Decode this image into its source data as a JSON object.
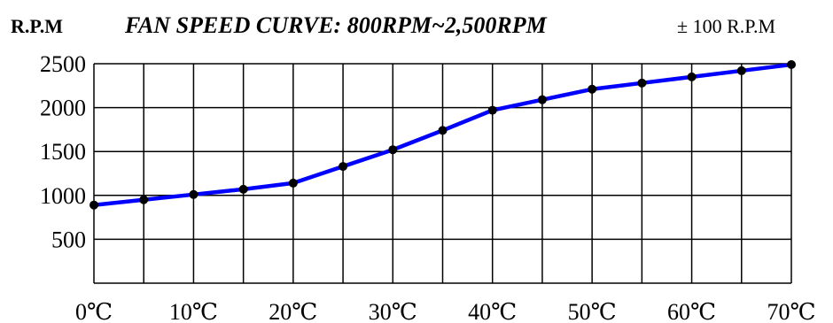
{
  "chart_data": {
    "type": "line",
    "title": "FAN SPEED CURVE: 800RPM~2,500RPM",
    "ylabel": "R.P.M",
    "tolerance_note": "± 100 R.P.M",
    "x": [
      0,
      5,
      10,
      15,
      20,
      25,
      30,
      35,
      40,
      45,
      50,
      55,
      60,
      65,
      70
    ],
    "x_ticks": [
      0,
      10,
      20,
      30,
      40,
      50,
      60,
      70
    ],
    "x_tick_labels": [
      "0℃",
      "10℃",
      "20℃",
      "30℃",
      "40℃",
      "50℃",
      "60℃",
      "70℃"
    ],
    "y_ticks": [
      500,
      1000,
      1500,
      2000,
      2500
    ],
    "y_tick_labels": [
      "500",
      "1000",
      "1500",
      "2000",
      "2500"
    ],
    "xlim": [
      0,
      70
    ],
    "ylim": [
      0,
      2500
    ],
    "grid": true,
    "series": [
      {
        "values": [
          890,
          950,
          1010,
          1070,
          1140,
          1330,
          1520,
          1740,
          1970,
          2090,
          2210,
          2280,
          2350,
          2420,
          2490
        ],
        "color": "#0000ff",
        "marker_color": "#000000"
      }
    ]
  }
}
